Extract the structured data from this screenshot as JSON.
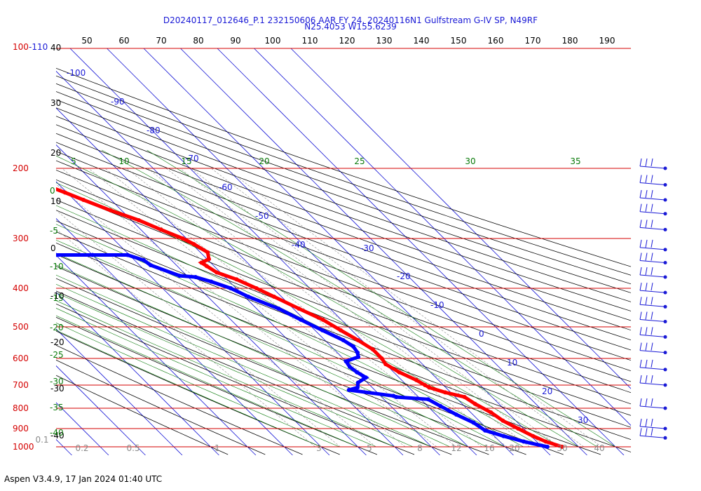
{
  "header": {
    "line1": "D20240117_012646_P.1 232150606 AAR FY 24, 20240116N1 Gulfstream G-IV SP, N49RF",
    "line2": "N25.4053 W155.6239"
  },
  "footer": "Aspen V3.4.9, 17 Jan 2024  01:40 UTC",
  "colors": {
    "isobar": "#d40000",
    "isotherm": "#1a1ad6",
    "dry_adiabat": "#000000",
    "moist_adiabat": "#0a7a0a",
    "mixing_ratio": "#8a8a8a",
    "temperature": "#ff0000",
    "dewpoint": "#0000ff",
    "wind_barb": "#1a1ad6"
  },
  "chart_data": {
    "type": "line",
    "diagram": "skew-T log-p",
    "pressure_axis": {
      "scale": "log",
      "range_hpa": [
        1000,
        100
      ],
      "labels": [
        "100-110",
        "200",
        "300",
        "400",
        "500",
        "600",
        "700",
        "800",
        "900",
        "1000"
      ],
      "isobars_hpa": [
        100,
        200,
        300,
        400,
        500,
        600,
        700,
        800,
        900,
        1000
      ]
    },
    "isotherm_labels": [
      "-100",
      "-90",
      "-80",
      "-70",
      "-60",
      "-50",
      "-40",
      "-30",
      "-20",
      "-10",
      "0",
      "10",
      "20",
      "30"
    ],
    "top_theta_labels": [
      "50",
      "60",
      "70",
      "80",
      "90",
      "100",
      "110",
      "120",
      "130",
      "140",
      "150",
      "160",
      "170",
      "180",
      "190"
    ],
    "left_theta_labels": [
      "40",
      "30",
      "20",
      "10",
      "0",
      "-10",
      "-20",
      "-30",
      "-40"
    ],
    "theta_e_labels": [
      "5",
      "10",
      "15",
      "20",
      "25",
      "30",
      "35"
    ],
    "left_moist_labels": [
      "0",
      "-5",
      "-10",
      "-15",
      "-20",
      "-25",
      "-30",
      "-35",
      "-40"
    ],
    "mixing_ratio_labels": [
      "0.1",
      "0.2",
      "0.5",
      "1",
      "3",
      "5",
      "8",
      "12",
      "16",
      "20",
      "30",
      "40"
    ],
    "series": [
      {
        "key": "temperature",
        "points": [
          {
            "p": 1000,
            "t": 25.5
          },
          {
            "p": 970,
            "t": 22.5
          },
          {
            "p": 940,
            "t": 20.5
          },
          {
            "p": 900,
            "t": 18.5
          },
          {
            "p": 860,
            "t": 16.5
          },
          {
            "p": 820,
            "t": 15.5
          },
          {
            "p": 780,
            "t": 13.5
          },
          {
            "p": 750,
            "t": 12.5
          },
          {
            "p": 730,
            "t": 8.5
          },
          {
            "p": 710,
            "t": 5.5
          },
          {
            "p": 700,
            "t": 5.0
          },
          {
            "p": 680,
            "t": 4.0
          },
          {
            "p": 650,
            "t": 1.5
          },
          {
            "p": 620,
            "t": 0.0
          },
          {
            "p": 600,
            "t": 0.5
          },
          {
            "p": 570,
            "t": 0.5
          },
          {
            "p": 540,
            "t": -1.0
          },
          {
            "p": 510,
            "t": -3.0
          },
          {
            "p": 480,
            "t": -5.0
          },
          {
            "p": 450,
            "t": -8.5
          },
          {
            "p": 420,
            "t": -12.0
          },
          {
            "p": 400,
            "t": -14.5
          },
          {
            "p": 380,
            "t": -17.5
          },
          {
            "p": 365,
            "t": -21.0
          },
          {
            "p": 352,
            "t": -22.0
          },
          {
            "p": 345,
            "t": -22.5
          },
          {
            "p": 338,
            "t": -19.5
          },
          {
            "p": 325,
            "t": -18.0
          },
          {
            "p": 310,
            "t": -19.5
          },
          {
            "p": 300,
            "t": -21.0
          },
          {
            "p": 285,
            "t": -24.5
          },
          {
            "p": 270,
            "t": -28.0
          },
          {
            "p": 255,
            "t": -33.0
          },
          {
            "p": 240,
            "t": -37.5
          },
          {
            "p": 230,
            "t": -40.5
          },
          {
            "p": 220,
            "t": -44.0
          },
          {
            "p": 210,
            "t": -47.0
          },
          {
            "p": 200,
            "t": -50.5
          },
          {
            "p": 192,
            "t": -52.5
          },
          {
            "p": 188,
            "t": -52.0
          }
        ]
      },
      {
        "key": "dewpoint",
        "points": [
          {
            "p": 1000,
            "t": 21.5
          },
          {
            "p": 970,
            "t": 16.5
          },
          {
            "p": 940,
            "t": 12.5
          },
          {
            "p": 910,
            "t": 9.0
          },
          {
            "p": 870,
            "t": 8.0
          },
          {
            "p": 830,
            "t": 5.5
          },
          {
            "p": 790,
            "t": 3.5
          },
          {
            "p": 760,
            "t": 2.0
          },
          {
            "p": 750,
            "t": -6.0
          },
          {
            "p": 745,
            "t": -6.5
          },
          {
            "p": 720,
            "t": -17.0
          },
          {
            "p": 710,
            "t": -14.0
          },
          {
            "p": 690,
            "t": -12.5
          },
          {
            "p": 670,
            "t": -9.0
          },
          {
            "p": 650,
            "t": -10.0
          },
          {
            "p": 630,
            "t": -10.5
          },
          {
            "p": 610,
            "t": -10.0
          },
          {
            "p": 595,
            "t": -5.5
          },
          {
            "p": 580,
            "t": -4.5
          },
          {
            "p": 560,
            "t": -4.0
          },
          {
            "p": 540,
            "t": -5.0
          },
          {
            "p": 510,
            "t": -8.0
          },
          {
            "p": 480,
            "t": -11.0
          },
          {
            "p": 450,
            "t": -14.0
          },
          {
            "p": 420,
            "t": -19.0
          },
          {
            "p": 400,
            "t": -21.5
          },
          {
            "p": 385,
            "t": -25.0
          },
          {
            "p": 375,
            "t": -28.0
          },
          {
            "p": 372,
            "t": -32.0
          },
          {
            "p": 350,
            "t": -37.0
          },
          {
            "p": 340,
            "t": -37.5
          },
          {
            "p": 330,
            "t": -40.5
          },
          {
            "p": 330,
            "t": -50.0
          },
          {
            "p": 330,
            "t": -60.0
          },
          {
            "p": 330,
            "t": -70.0
          },
          {
            "p": 330,
            "t": -80.0
          },
          {
            "p": 328,
            "t": -84.0
          },
          {
            "p": 325,
            "t": -83.0
          },
          {
            "p": 318,
            "t": -82.0
          },
          {
            "p": 305,
            "t": -76.0
          },
          {
            "p": 285,
            "t": -76.5
          },
          {
            "p": 265,
            "t": -71.0
          },
          {
            "p": 255,
            "t": -65.5
          },
          {
            "p": 245,
            "t": -68.5
          },
          {
            "p": 235,
            "t": -72.5
          },
          {
            "p": 228,
            "t": -74.0
          }
        ]
      }
    ],
    "wind_barb_levels_hpa": [
      200,
      220,
      240,
      260,
      285,
      320,
      345,
      375,
      410,
      445,
      485,
      530,
      580,
      640,
      700,
      800,
      900,
      950
    ]
  }
}
